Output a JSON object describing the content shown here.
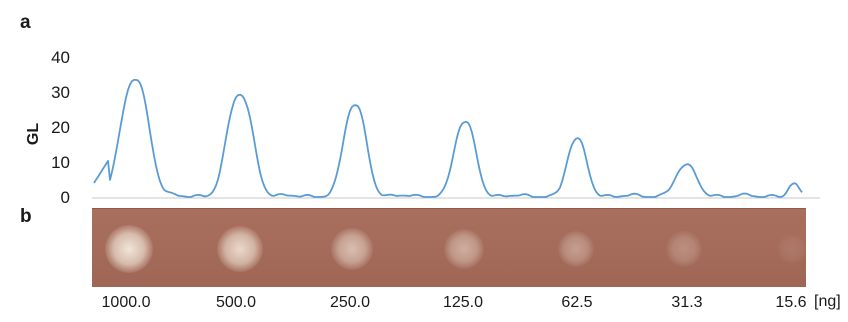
{
  "panels": {
    "a": "a",
    "b": "b"
  },
  "chart_data": {
    "type": "line",
    "ylabel": "GL",
    "ylim": [
      0,
      40
    ],
    "yticks": [
      0,
      10,
      20,
      30,
      40
    ],
    "grid": false,
    "color": "#5b9bd5",
    "peaks": [
      {
        "amount_ng": 1000.0,
        "gl": 33.5
      },
      {
        "amount_ng": 500.0,
        "gl": 29
      },
      {
        "amount_ng": 250.0,
        "gl": 26
      },
      {
        "amount_ng": 125.0,
        "gl": 21
      },
      {
        "amount_ng": 62.5,
        "gl": 16
      },
      {
        "amount_ng": 31.3,
        "gl": 8.5
      },
      {
        "amount_ng": 15.6,
        "gl": 3.5
      }
    ]
  },
  "plate": {
    "background": "#a56b5b",
    "spot_color": "#f0e8dc",
    "amounts": [
      "1000.0",
      "500.0",
      "250.0",
      "125.0",
      "62.5",
      "31.3",
      "15.6"
    ],
    "spot_intensity": [
      1.0,
      0.9,
      0.68,
      0.55,
      0.42,
      0.3,
      0.12
    ],
    "unit": "[ng]"
  }
}
